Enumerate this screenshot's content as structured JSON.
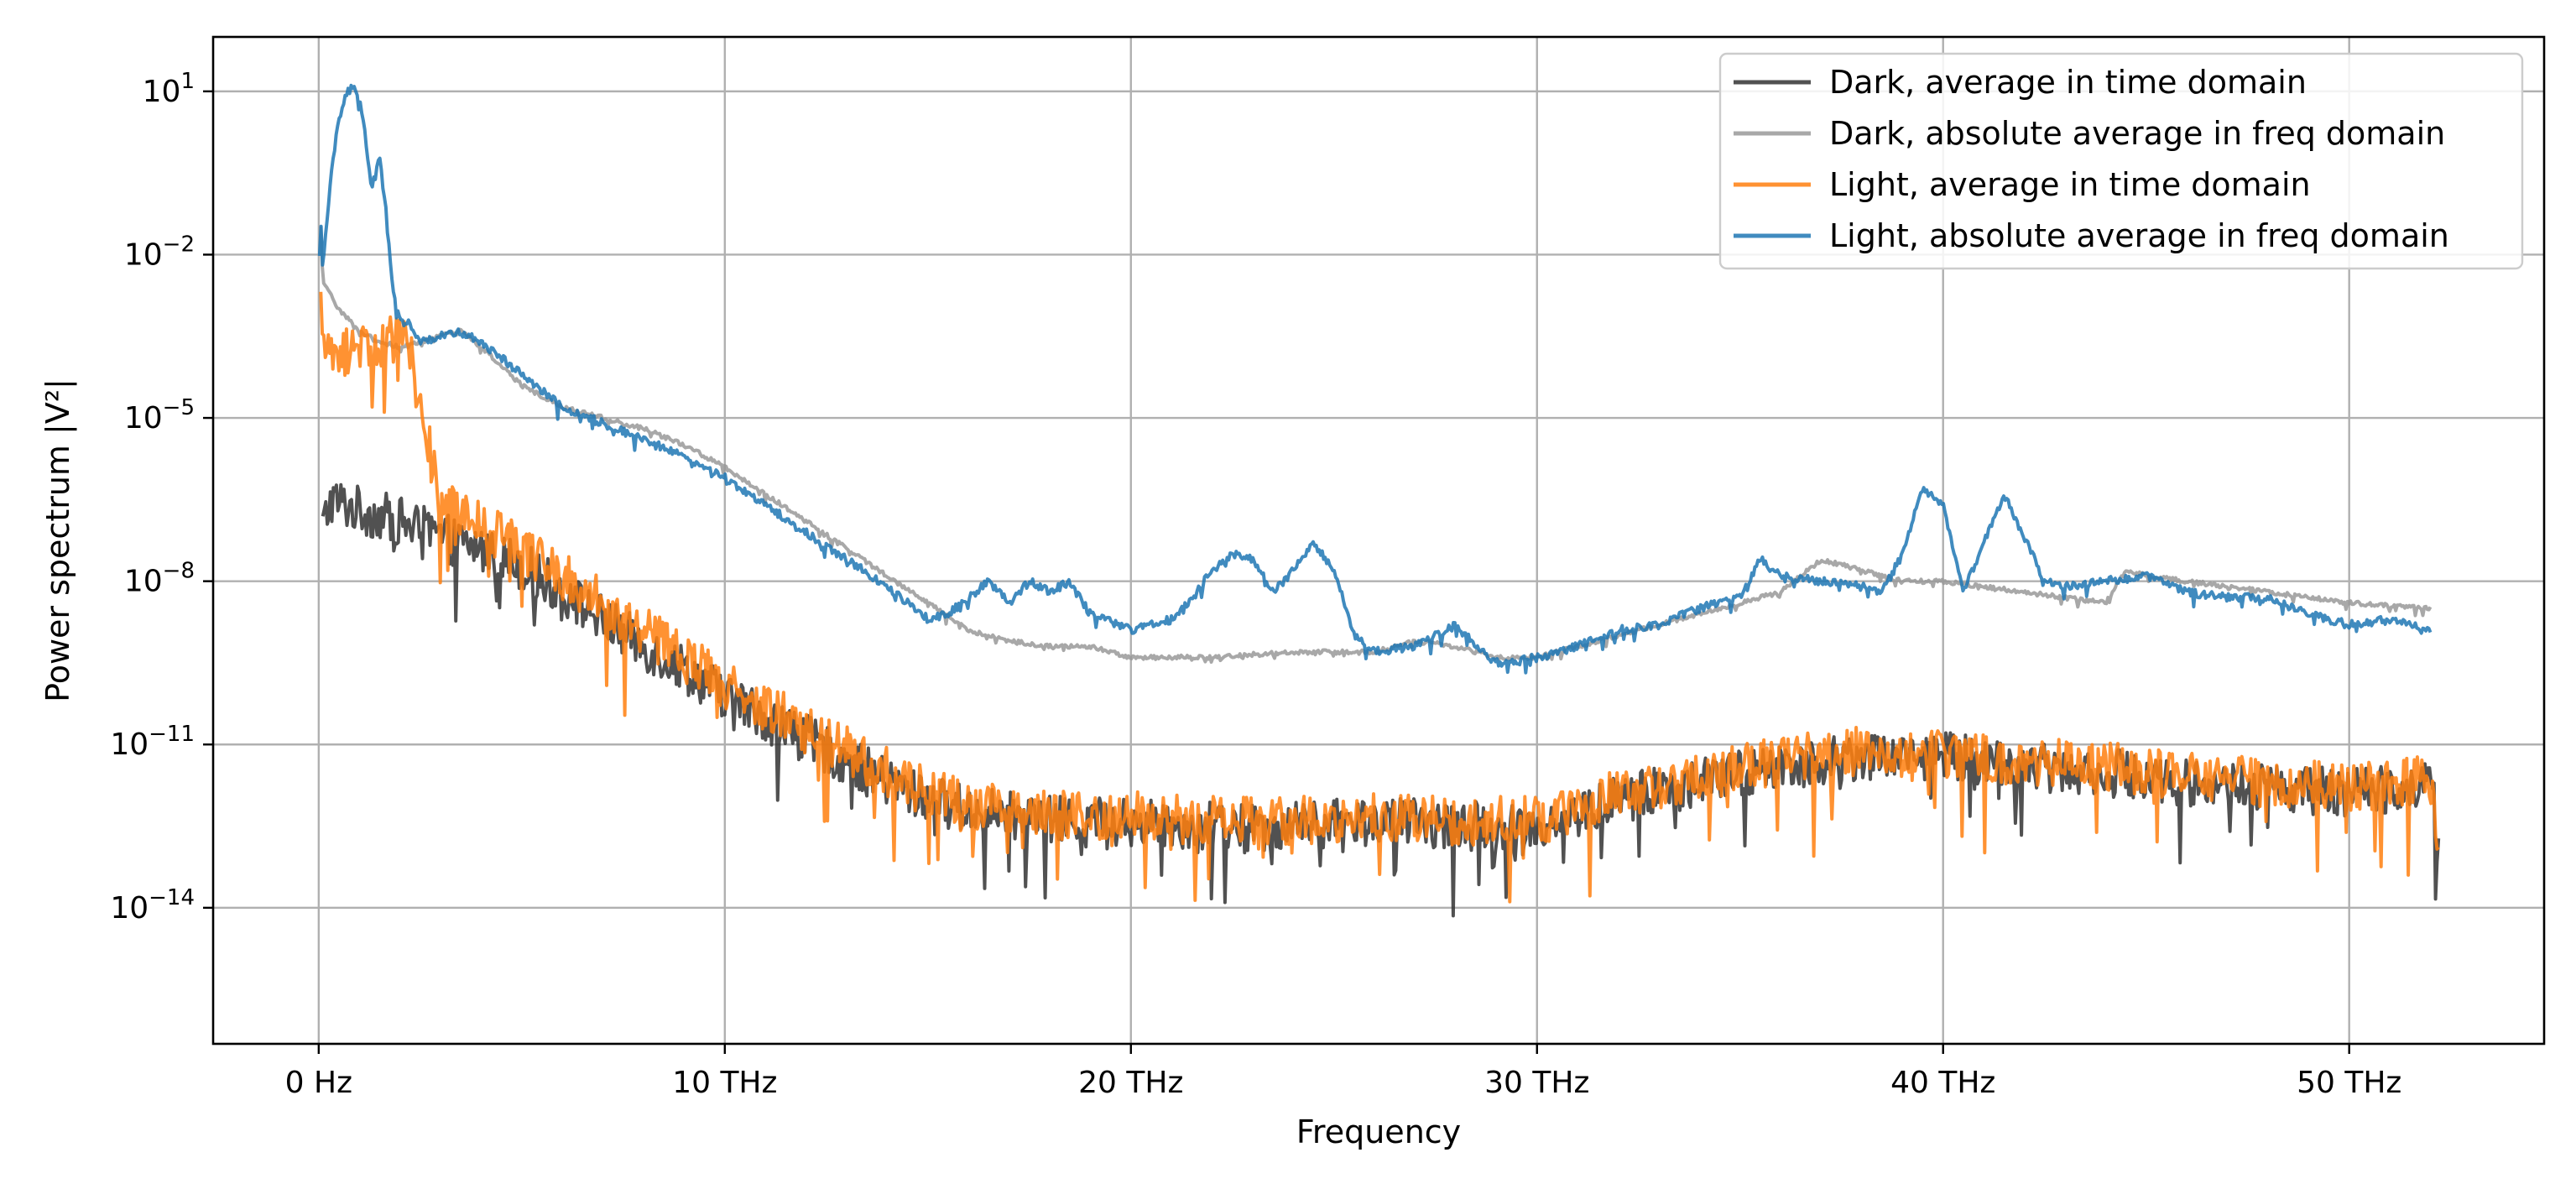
{
  "chart_data": {
    "type": "line",
    "title": "",
    "xlabel": "Frequency",
    "ylabel": "Power spectrum |V²|",
    "yscale": "log",
    "xlim": [
      -2.6,
      54.8
    ],
    "ylim_exp": [
      -16.5,
      2.0
    ],
    "x_ticks": [
      {
        "value": 0,
        "label": "0 Hz"
      },
      {
        "value": 10,
        "label": "10 THz"
      },
      {
        "value": 20,
        "label": "20 THz"
      },
      {
        "value": 30,
        "label": "30 THz"
      },
      {
        "value": 40,
        "label": "40 THz"
      },
      {
        "value": 50,
        "label": "50 THz"
      }
    ],
    "y_ticks": [
      {
        "exp": 1,
        "base": "10",
        "sup": "1"
      },
      {
        "exp": -2,
        "base": "10",
        "sup": "−2"
      },
      {
        "exp": -5,
        "base": "10",
        "sup": "−5"
      },
      {
        "exp": -8,
        "base": "10",
        "sup": "−8"
      },
      {
        "exp": -11,
        "base": "10",
        "sup": "−11"
      },
      {
        "exp": -14,
        "base": "10",
        "sup": "−14"
      }
    ],
    "grid": true,
    "legend_position": "top-right",
    "series": [
      {
        "name": "Dark, average in time domain",
        "color": "#333333",
        "noise": 0.9,
        "points": [
          [
            0.1,
            -7
          ],
          [
            0.3,
            -6.5
          ],
          [
            1,
            -6.7
          ],
          [
            2,
            -6.9
          ],
          [
            3,
            -7.2
          ],
          [
            4,
            -7.4
          ],
          [
            5,
            -7.7
          ],
          [
            6,
            -8.2
          ],
          [
            7,
            -8.7
          ],
          [
            8,
            -9.2
          ],
          [
            9,
            -9.6
          ],
          [
            10,
            -10.1
          ],
          [
            11,
            -10.5
          ],
          [
            12,
            -10.9
          ],
          [
            13,
            -11.3
          ],
          [
            14,
            -11.7
          ],
          [
            15,
            -12.0
          ],
          [
            16,
            -12.2
          ],
          [
            18,
            -12.4
          ],
          [
            20,
            -12.4
          ],
          [
            22,
            -12.5
          ],
          [
            24,
            -12.5
          ],
          [
            26,
            -12.4
          ],
          [
            28,
            -12.5
          ],
          [
            30,
            -12.5
          ],
          [
            31,
            -12.3
          ],
          [
            32,
            -12.0
          ],
          [
            34,
            -11.7
          ],
          [
            36,
            -11.4
          ],
          [
            38,
            -11.2
          ],
          [
            40,
            -11.2
          ],
          [
            42,
            -11.4
          ],
          [
            44,
            -11.5
          ],
          [
            46,
            -11.7
          ],
          [
            48,
            -11.8
          ],
          [
            50,
            -11.9
          ],
          [
            52,
            -11.7
          ],
          [
            52.2,
            -12.6
          ]
        ]
      },
      {
        "name": "Dark, absolute average in freq domain",
        "color": "#999999",
        "noise": 0.08,
        "points": [
          [
            0.05,
            -1.5
          ],
          [
            0.1,
            -2.5
          ],
          [
            0.5,
            -3.0
          ],
          [
            1,
            -3.4
          ],
          [
            1.5,
            -3.6
          ],
          [
            2,
            -3.7
          ],
          [
            3,
            -3.5
          ],
          [
            3.5,
            -3.4
          ],
          [
            4,
            -3.7
          ],
          [
            5,
            -4.4
          ],
          [
            6,
            -4.8
          ],
          [
            7,
            -5.0
          ],
          [
            8,
            -5.2
          ],
          [
            9,
            -5.5
          ],
          [
            10,
            -5.9
          ],
          [
            11,
            -6.4
          ],
          [
            12,
            -6.9
          ],
          [
            13,
            -7.4
          ],
          [
            14,
            -7.9
          ],
          [
            15,
            -8.4
          ],
          [
            16,
            -8.9
          ],
          [
            17,
            -9.1
          ],
          [
            18,
            -9.2
          ],
          [
            19,
            -9.2
          ],
          [
            20,
            -9.4
          ],
          [
            22,
            -9.4
          ],
          [
            24,
            -9.3
          ],
          [
            26,
            -9.3
          ],
          [
            27,
            -9.1
          ],
          [
            28,
            -9.2
          ],
          [
            29,
            -9.4
          ],
          [
            30,
            -9.4
          ],
          [
            31,
            -9.2
          ],
          [
            32,
            -9.0
          ],
          [
            34,
            -8.6
          ],
          [
            36,
            -8.2
          ],
          [
            37,
            -7.6
          ],
          [
            38,
            -7.8
          ],
          [
            39,
            -8.0
          ],
          [
            40,
            -8.0
          ],
          [
            42,
            -8.2
          ],
          [
            44,
            -8.4
          ],
          [
            44.5,
            -7.8
          ],
          [
            45,
            -7.9
          ],
          [
            46,
            -8.0
          ],
          [
            48,
            -8.2
          ],
          [
            50,
            -8.4
          ],
          [
            52,
            -8.5
          ]
        ]
      },
      {
        "name": "Light, average in time domain",
        "color": "#ff7f0e",
        "noise": 0.9,
        "points": [
          [
            0.05,
            -3.0
          ],
          [
            0.1,
            -3.2
          ],
          [
            0.3,
            -4.0
          ],
          [
            1,
            -3.6
          ],
          [
            1.5,
            -3.7
          ],
          [
            2,
            -3.5
          ],
          [
            2.3,
            -4.0
          ],
          [
            2.7,
            -5.5
          ],
          [
            3,
            -6.5
          ],
          [
            3.5,
            -6.8
          ],
          [
            4,
            -7.0
          ],
          [
            5,
            -7.4
          ],
          [
            6,
            -7.9
          ],
          [
            7,
            -8.4
          ],
          [
            8,
            -8.9
          ],
          [
            9,
            -9.4
          ],
          [
            10,
            -9.9
          ],
          [
            11,
            -10.3
          ],
          [
            12,
            -10.7
          ],
          [
            13,
            -11.1
          ],
          [
            14,
            -11.5
          ],
          [
            15,
            -11.9
          ],
          [
            16,
            -12.1
          ],
          [
            18,
            -12.3
          ],
          [
            20,
            -12.3
          ],
          [
            22,
            -12.4
          ],
          [
            24,
            -12.4
          ],
          [
            26,
            -12.3
          ],
          [
            28,
            -12.4
          ],
          [
            30,
            -12.4
          ],
          [
            31,
            -12.2
          ],
          [
            32,
            -11.9
          ],
          [
            34,
            -11.6
          ],
          [
            36,
            -11.3
          ],
          [
            38,
            -11.1
          ],
          [
            40,
            -11.2
          ],
          [
            42,
            -11.3
          ],
          [
            44,
            -11.4
          ],
          [
            46,
            -11.6
          ],
          [
            48,
            -11.7
          ],
          [
            50,
            -11.8
          ],
          [
            52,
            -11.6
          ],
          [
            52.2,
            -12.8
          ]
        ]
      },
      {
        "name": "Light, absolute average in freq domain",
        "color": "#1f77b4",
        "noise": 0.15,
        "points": [
          [
            0.02,
            -2.0
          ],
          [
            0.05,
            -1.2
          ],
          [
            0.1,
            -2.3
          ],
          [
            0.3,
            -0.5
          ],
          [
            0.5,
            0.5
          ],
          [
            0.7,
            1.0
          ],
          [
            0.9,
            1.1
          ],
          [
            1.1,
            0.5
          ],
          [
            1.3,
            -0.8
          ],
          [
            1.5,
            -0.2
          ],
          [
            1.7,
            -1.5
          ],
          [
            1.8,
            -2.5
          ],
          [
            2,
            -3.2
          ],
          [
            2.3,
            -3.3
          ],
          [
            2.5,
            -3.6
          ],
          [
            3,
            -3.5
          ],
          [
            3.5,
            -3.4
          ],
          [
            4,
            -3.6
          ],
          [
            4.5,
            -3.9
          ],
          [
            5,
            -4.2
          ],
          [
            5.5,
            -4.5
          ],
          [
            6,
            -4.8
          ],
          [
            7,
            -5.1
          ],
          [
            8,
            -5.4
          ],
          [
            9,
            -5.7
          ],
          [
            10,
            -6.1
          ],
          [
            11,
            -6.6
          ],
          [
            12,
            -7.1
          ],
          [
            13,
            -7.6
          ],
          [
            14,
            -8.1
          ],
          [
            15,
            -8.7
          ],
          [
            15.5,
            -8.6
          ],
          [
            16,
            -8.3
          ],
          [
            16.5,
            -8.0
          ],
          [
            17,
            -8.4
          ],
          [
            17.5,
            -8.0
          ],
          [
            18,
            -8.2
          ],
          [
            18.5,
            -8.0
          ],
          [
            19,
            -8.6
          ],
          [
            20,
            -8.9
          ],
          [
            20.5,
            -8.8
          ],
          [
            21,
            -8.7
          ],
          [
            21.5,
            -8.3
          ],
          [
            22,
            -7.8
          ],
          [
            22.5,
            -7.5
          ],
          [
            23,
            -7.6
          ],
          [
            23.5,
            -8.2
          ],
          [
            24,
            -7.8
          ],
          [
            24.5,
            -7.3
          ],
          [
            25,
            -7.8
          ],
          [
            25.5,
            -9.0
          ],
          [
            26,
            -9.3
          ],
          [
            27,
            -9.2
          ],
          [
            27.5,
            -9.0
          ],
          [
            28,
            -8.8
          ],
          [
            28.5,
            -9.2
          ],
          [
            29,
            -9.5
          ],
          [
            30,
            -9.4
          ],
          [
            31,
            -9.2
          ],
          [
            32,
            -8.9
          ],
          [
            33,
            -8.8
          ],
          [
            34,
            -8.5
          ],
          [
            35,
            -8.3
          ],
          [
            35.5,
            -7.6
          ],
          [
            36,
            -7.9
          ],
          [
            37,
            -8.0
          ],
          [
            38,
            -8.1
          ],
          [
            38.5,
            -8.2
          ],
          [
            39,
            -7.5
          ],
          [
            39.5,
            -6.3
          ],
          [
            40,
            -6.6
          ],
          [
            40.5,
            -8.2
          ],
          [
            41,
            -7.3
          ],
          [
            41.5,
            -6.4
          ],
          [
            42,
            -7.2
          ],
          [
            42.5,
            -8.0
          ],
          [
            43,
            -8.1
          ],
          [
            44,
            -8.0
          ],
          [
            45,
            -7.9
          ],
          [
            46,
            -8.2
          ],
          [
            47,
            -8.3
          ],
          [
            48,
            -8.3
          ],
          [
            49,
            -8.6
          ],
          [
            50,
            -8.8
          ],
          [
            51,
            -8.7
          ],
          [
            52,
            -8.9
          ]
        ]
      }
    ]
  }
}
